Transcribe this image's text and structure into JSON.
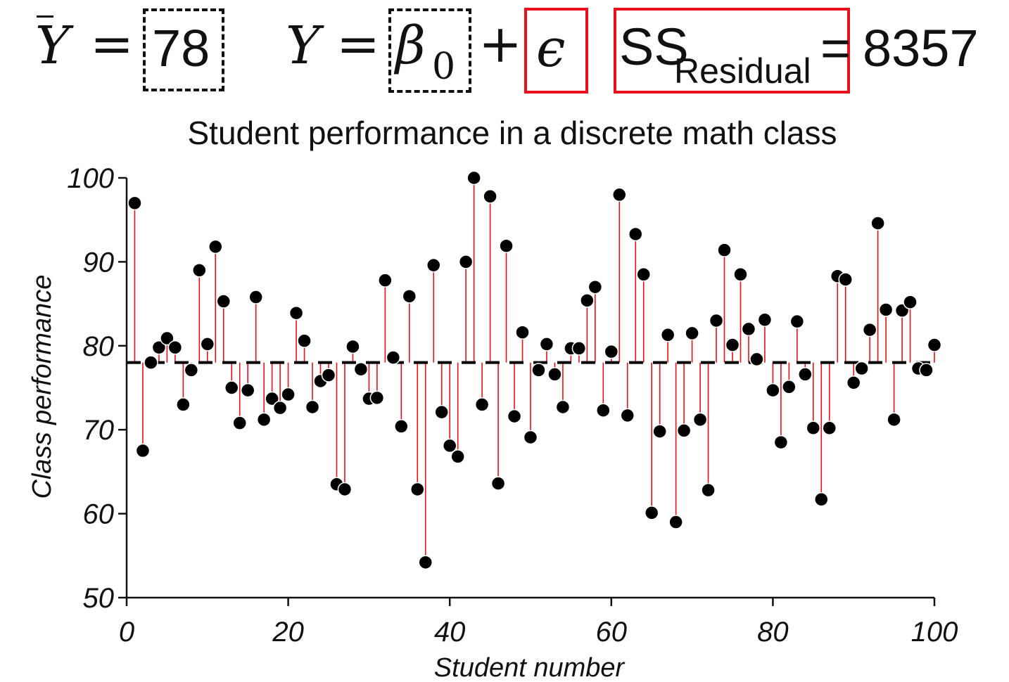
{
  "formula": {
    "ybar_symbol": "Y",
    "equals": "=",
    "mean_value": "78",
    "model_y": "Y",
    "beta": "β",
    "beta_sub": "0",
    "plus": "+",
    "epsilon": "ϵ",
    "ss_label": "SS",
    "ss_sub": "Residual",
    "ss_equals": "=",
    "ss_value": "8357",
    "colors": {
      "dashed_box": "#111111",
      "highlight_box": "#e8101a"
    }
  },
  "chart_data": {
    "type": "scatter",
    "title": "Student performance in a discrete math class",
    "xlabel": "Student number",
    "ylabel": "Class performance",
    "xlim": [
      0,
      100
    ],
    "ylim": [
      50,
      100
    ],
    "xticks": [
      0,
      20,
      40,
      60,
      80,
      100
    ],
    "yticks": [
      50,
      60,
      70,
      80,
      90,
      100
    ],
    "mean_line": 78,
    "grid": false,
    "colors": {
      "point": "#000000",
      "residual": "#e8101a",
      "mean": "#000000"
    },
    "x": [
      1,
      2,
      3,
      4,
      5,
      6,
      7,
      8,
      9,
      10,
      11,
      12,
      13,
      14,
      15,
      16,
      17,
      18,
      19,
      20,
      21,
      22,
      23,
      24,
      25,
      26,
      27,
      28,
      29,
      30,
      31,
      32,
      33,
      34,
      35,
      36,
      37,
      38,
      39,
      40,
      41,
      42,
      43,
      44,
      45,
      46,
      47,
      48,
      49,
      50,
      51,
      52,
      53,
      54,
      55,
      56,
      57,
      58,
      59,
      60,
      61,
      62,
      63,
      64,
      65,
      66,
      67,
      68,
      69,
      70,
      71,
      72,
      73,
      74,
      75,
      76,
      77,
      78,
      79,
      80,
      81,
      82,
      83,
      84,
      85,
      86,
      87,
      88,
      89,
      90,
      91,
      92,
      93,
      94,
      95,
      96,
      97,
      98,
      99,
      100
    ],
    "y": [
      97,
      67.5,
      78,
      79.8,
      80.9,
      79.8,
      73,
      77.1,
      89,
      80.2,
      91.8,
      85.3,
      75,
      70.8,
      74.7,
      85.8,
      71.2,
      73.7,
      72.6,
      74.2,
      83.9,
      80.6,
      72.7,
      75.8,
      76.5,
      63.5,
      62.9,
      79.9,
      77.2,
      73.7,
      73.8,
      87.8,
      78.6,
      70.4,
      85.9,
      62.9,
      54.2,
      89.6,
      72.1,
      68.1,
      66.8,
      90,
      100,
      73,
      97.8,
      63.6,
      91.9,
      71.6,
      81.6,
      69.1,
      77.1,
      80.2,
      76.6,
      72.7,
      79.7,
      79.7,
      85.4,
      87,
      72.3,
      79.3,
      98,
      71.7,
      93.3,
      88.5,
      60.1,
      69.8,
      81.3,
      59,
      69.9,
      81.5,
      71.2,
      62.8,
      83,
      91.4,
      80.1,
      88.5,
      82,
      78.4,
      83.1,
      74.7,
      68.5,
      75.1,
      82.9,
      76.6,
      70.2,
      61.7,
      70.2,
      88.3,
      87.9,
      75.6,
      77.3,
      81.9,
      94.6,
      84.3,
      71.2,
      84.2,
      85.2,
      77.3,
      77.1,
      80.1
    ]
  }
}
